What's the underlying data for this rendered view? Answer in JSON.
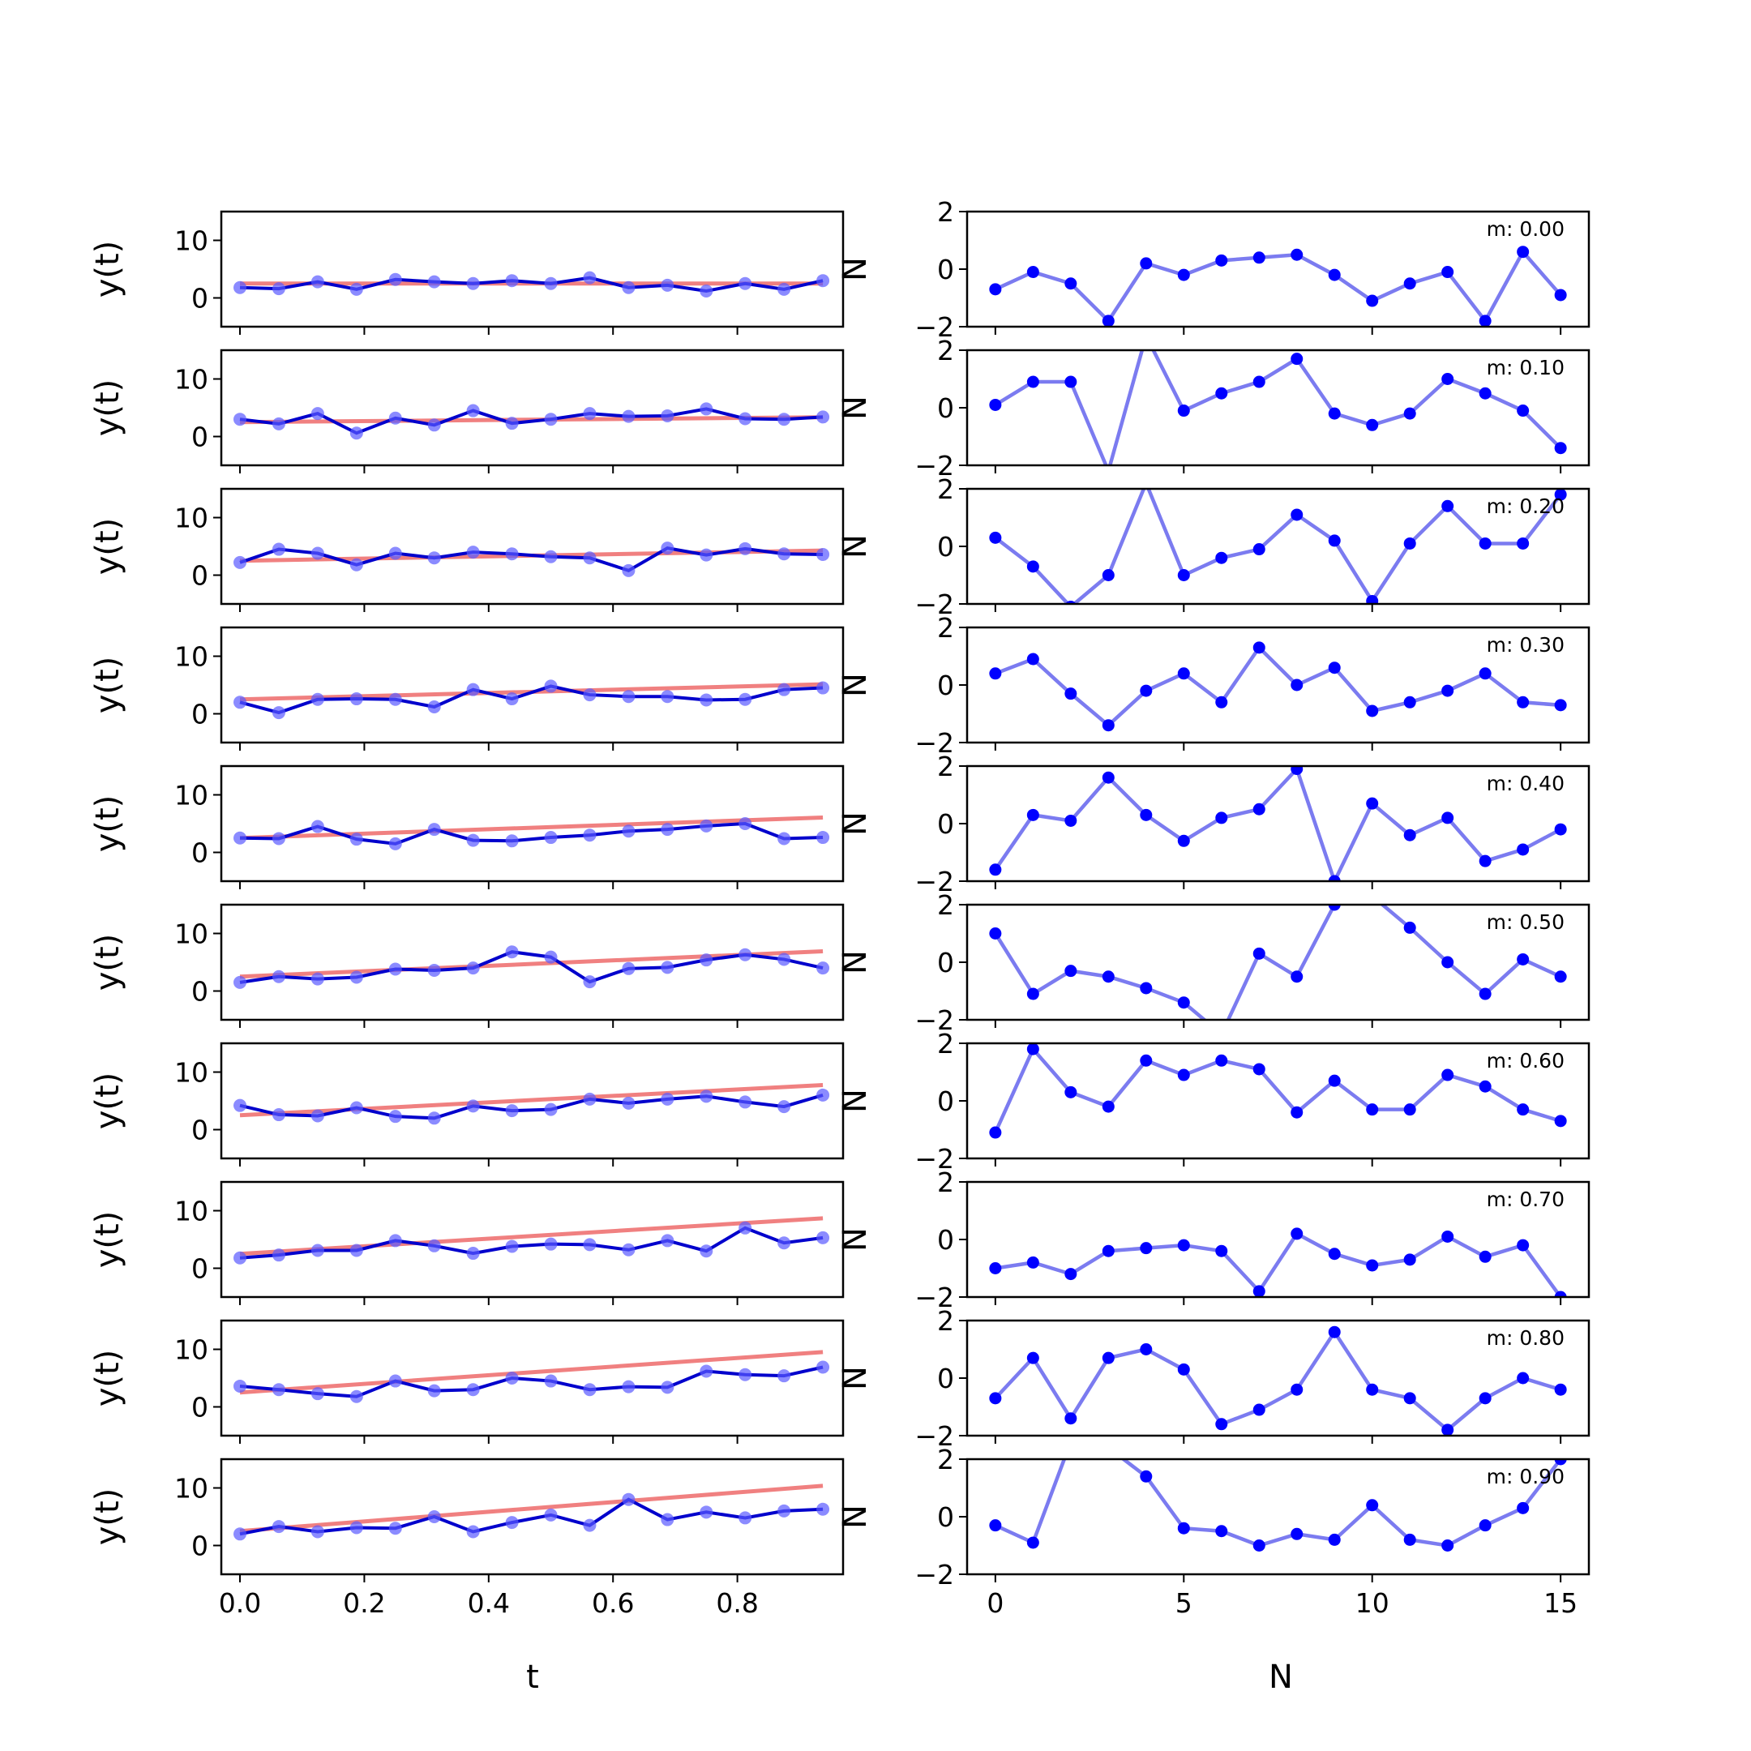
{
  "colors": {
    "fit_line": "#f08080",
    "data_line": "#0000cc",
    "data_marker": "#5a5aff",
    "residual": "#0000ff",
    "residual_line": "#7b7bf0"
  },
  "left": {
    "ylabel": "y(t)",
    "xlabel": "t",
    "xlim": [
      -0.03,
      0.97
    ],
    "ylim": [
      -5,
      15
    ],
    "xticks": [
      {
        "v": 0.0,
        "label": "0.0"
      },
      {
        "v": 0.2,
        "label": "0.2"
      },
      {
        "v": 0.4,
        "label": "0.4"
      },
      {
        "v": 0.6,
        "label": "0.6"
      },
      {
        "v": 0.8,
        "label": "0.8"
      }
    ],
    "yticks": [
      {
        "v": 0,
        "label": "0"
      },
      {
        "v": 10,
        "label": "10"
      }
    ]
  },
  "right": {
    "ylabel": "N",
    "xlabel": "N",
    "xlim": [
      -0.75,
      15.75
    ],
    "ylim": [
      -2,
      2
    ],
    "xticks": [
      {
        "v": 0,
        "label": "0"
      },
      {
        "v": 5,
        "label": "5"
      },
      {
        "v": 10,
        "label": "10"
      },
      {
        "v": 15,
        "label": "15"
      }
    ],
    "yticks": [
      {
        "v": -2,
        "label": "−2"
      },
      {
        "v": 0,
        "label": "0"
      },
      {
        "v": 2,
        "label": "2"
      }
    ]
  },
  "chart_data": {
    "type": "line",
    "t": [
      0.0,
      0.0625,
      0.125,
      0.1875,
      0.25,
      0.3125,
      0.375,
      0.4375,
      0.5,
      0.5625,
      0.625,
      0.6875,
      0.75,
      0.8125,
      0.875,
      0.9375
    ],
    "n": [
      0,
      1,
      2,
      3,
      4,
      5,
      6,
      7,
      8,
      9,
      10,
      11,
      12,
      13,
      14,
      15
    ],
    "rows": [
      {
        "m_label": "m: 0.00",
        "fit": [
          2.5,
          2.5
        ],
        "y": [
          1.8,
          1.6,
          2.8,
          1.5,
          3.2,
          2.8,
          2.5,
          3.0,
          2.5,
          3.5,
          1.8,
          2.2,
          1.2,
          2.5,
          1.5,
          3.0
        ],
        "residual": [
          -0.7,
          -0.1,
          -0.5,
          -1.8,
          0.2,
          -0.2,
          0.3,
          0.4,
          0.5,
          -0.2,
          -1.1,
          -0.5,
          -0.1,
          -1.8,
          0.6,
          -0.9
        ]
      },
      {
        "m_label": "m: 0.10",
        "fit": [
          2.5,
          3.4
        ],
        "y": [
          3.0,
          2.2,
          4.0,
          0.6,
          3.2,
          2.0,
          4.5,
          2.3,
          3.0,
          4.0,
          3.5,
          3.6,
          4.8,
          3.1,
          3.0,
          3.4
        ],
        "residual": [
          0.1,
          0.9,
          0.9,
          -2.2,
          2.5,
          -0.1,
          0.5,
          0.9,
          1.7,
          -0.2,
          -0.6,
          -0.2,
          1.0,
          0.5,
          -0.1,
          -1.4
        ]
      },
      {
        "m_label": "m: 0.20",
        "fit": [
          2.5,
          4.4
        ],
        "y": [
          2.2,
          4.5,
          3.8,
          1.8,
          3.8,
          3.0,
          4.0,
          3.7,
          3.2,
          3.0,
          0.8,
          4.7,
          3.5,
          4.6,
          3.7,
          3.6
        ],
        "residual": [
          0.3,
          -0.7,
          -2.1,
          -1.0,
          2.2,
          -1.0,
          -0.4,
          -0.1,
          1.1,
          0.2,
          -1.9,
          0.1,
          1.4,
          0.1,
          0.1,
          1.8
        ]
      },
      {
        "m_label": "m: 0.30",
        "fit": [
          2.5,
          5.3
        ],
        "y": [
          2.0,
          0.2,
          2.5,
          2.6,
          2.5,
          1.2,
          4.2,
          2.6,
          4.8,
          3.3,
          3.0,
          3.0,
          2.4,
          2.5,
          4.2,
          4.5
        ],
        "residual": [
          0.4,
          0.9,
          -0.3,
          -1.4,
          -0.2,
          0.4,
          -0.6,
          1.3,
          0.0,
          0.6,
          -0.9,
          -0.6,
          -0.2,
          0.4,
          -0.6,
          -0.7
        ]
      },
      {
        "m_label": "m: 0.40",
        "fit": [
          2.5,
          6.3
        ],
        "y": [
          2.5,
          2.4,
          4.5,
          2.3,
          1.5,
          4.0,
          2.1,
          2.0,
          2.6,
          3.0,
          3.7,
          4.0,
          4.6,
          5.0,
          2.4,
          2.6
        ],
        "residual": [
          -1.6,
          0.3,
          0.1,
          1.6,
          0.3,
          -0.6,
          0.2,
          0.5,
          1.9,
          -2.0,
          0.7,
          -0.4,
          0.2,
          -1.3,
          -0.9,
          -0.2
        ]
      },
      {
        "m_label": "m: 0.50",
        "fit": [
          2.5,
          7.2
        ],
        "y": [
          1.5,
          2.5,
          2.1,
          2.4,
          3.8,
          3.6,
          4.0,
          6.8,
          5.9,
          1.6,
          3.9,
          4.1,
          5.4,
          6.3,
          5.5,
          4.0
        ],
        "residual": [
          1.0,
          -1.1,
          -0.3,
          -0.5,
          -0.9,
          -1.4,
          -2.5,
          0.3,
          -0.5,
          2.0,
          2.3,
          1.2,
          0.0,
          -1.1,
          0.1,
          -0.5
        ]
      },
      {
        "m_label": "m: 0.60",
        "fit": [
          2.5,
          8.1
        ],
        "y": [
          4.2,
          2.6,
          2.4,
          3.8,
          2.3,
          2.0,
          4.1,
          3.3,
          3.5,
          5.3,
          4.6,
          5.3,
          5.8,
          4.8,
          4.0,
          6.0
        ],
        "residual": [
          -1.1,
          1.8,
          0.3,
          -0.2,
          1.4,
          0.9,
          1.4,
          1.1,
          -0.4,
          0.7,
          -0.3,
          -0.3,
          0.9,
          0.5,
          -0.3,
          -0.7
        ]
      },
      {
        "m_label": "m: 0.70",
        "fit": [
          2.5,
          9.1
        ],
        "y": [
          1.8,
          2.3,
          3.1,
          3.1,
          4.8,
          3.9,
          2.6,
          3.8,
          4.2,
          4.1,
          3.2,
          4.8,
          3.0,
          7.0,
          4.4,
          5.3
        ],
        "residual": [
          -1.0,
          -0.8,
          -1.2,
          -0.4,
          -0.3,
          -0.2,
          -0.4,
          -1.8,
          0.2,
          -0.5,
          -0.9,
          -0.7,
          0.1,
          -0.6,
          -0.2,
          -2.0
        ]
      },
      {
        "m_label": "m: 0.80",
        "fit": [
          2.5,
          10.0
        ],
        "y": [
          3.6,
          3.0,
          2.3,
          1.8,
          4.5,
          2.8,
          3.0,
          5.0,
          4.5,
          3.0,
          3.5,
          3.4,
          6.2,
          5.6,
          5.4,
          6.9
        ],
        "residual": [
          -0.7,
          0.7,
          -1.4,
          0.7,
          1.0,
          0.3,
          -1.6,
          -1.1,
          -0.4,
          1.6,
          -0.4,
          -0.7,
          -1.8,
          -0.7,
          -0.0,
          -0.4
        ]
      },
      {
        "m_label": "m: 0.90",
        "fit": [
          2.5,
          10.9
        ],
        "y": [
          2.0,
          3.3,
          2.4,
          3.1,
          3.0,
          5.0,
          2.4,
          4.0,
          5.3,
          3.5,
          8.0,
          4.5,
          5.8,
          4.8,
          6.0,
          6.3
        ],
        "residual": [
          -0.3,
          -0.9,
          2.6,
          2.4,
          1.4,
          -0.4,
          -0.5,
          -1.0,
          -0.6,
          -0.8,
          0.4,
          -0.8,
          -1.0,
          -0.3,
          0.3,
          2.0
        ]
      }
    ]
  }
}
